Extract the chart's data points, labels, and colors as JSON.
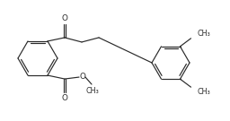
{
  "bg": "#ffffff",
  "lc": "#2a2a2a",
  "lw": 0.85,
  "tc": "#2a2a2a",
  "fs": 5.8,
  "figsize": [
    2.56,
    1.35
  ],
  "dpi": 100,
  "xlim": [
    0,
    256
  ],
  "ylim": [
    0,
    135
  ],
  "r1cx": 42,
  "r1cy": 70,
  "r1r": 22,
  "r2cx": 190,
  "r2cy": 65,
  "r2r": 21
}
